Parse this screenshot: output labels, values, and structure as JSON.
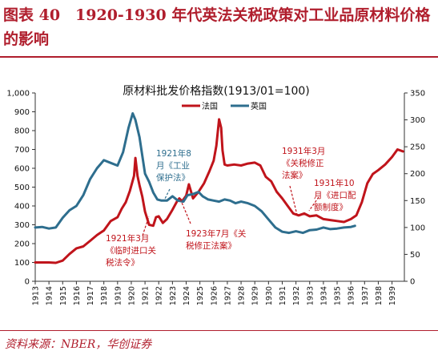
{
  "figure": {
    "title": "图表 40　1920-1930 年代英法关税政策对工业品原材料价格的影响",
    "source": "资料来源：NBER，华创证券"
  },
  "colors": {
    "france": "#c0141b",
    "uk": "#2e6e8e",
    "accent": "#b01e2d"
  },
  "chart_data": {
    "type": "line",
    "title": "原材料批发价格指数(1913/01=100)",
    "x_ticks": [
      "1913",
      "1914",
      "1915",
      "1916",
      "1917",
      "1918",
      "1919",
      "1920",
      "1921",
      "1922",
      "1923",
      "1924",
      "1925",
      "1926",
      "1927",
      "1928",
      "1929",
      "1930",
      "1931",
      "1932",
      "1933",
      "1934",
      "1935",
      "1936",
      "1937",
      "1938",
      "1939"
    ],
    "xlim": [
      1913.0,
      1939.9
    ],
    "y_left": {
      "lim": [
        0,
        1000
      ],
      "ticks": [
        "0",
        "100",
        "200",
        "300",
        "400",
        "500",
        "600",
        "700",
        "800",
        "900",
        "1,000"
      ]
    },
    "y_right": {
      "lim": [
        0,
        350
      ],
      "ticks": [
        "0",
        "50",
        "100",
        "150",
        "200",
        "250",
        "300",
        "350"
      ]
    },
    "legend": {
      "position": "top-center"
    },
    "series": [
      {
        "name": "法国",
        "axis": "left",
        "color": "#c0141b",
        "points": [
          [
            1913.0,
            100
          ],
          [
            1913.5,
            100
          ],
          [
            1914.0,
            100
          ],
          [
            1914.5,
            98
          ],
          [
            1915.0,
            110
          ],
          [
            1915.5,
            145
          ],
          [
            1916.0,
            175
          ],
          [
            1916.5,
            185
          ],
          [
            1917.0,
            215
          ],
          [
            1917.5,
            245
          ],
          [
            1918.0,
            270
          ],
          [
            1918.5,
            320
          ],
          [
            1919.0,
            340
          ],
          [
            1919.3,
            385
          ],
          [
            1919.6,
            420
          ],
          [
            1919.9,
            480
          ],
          [
            1920.2,
            560
          ],
          [
            1920.3,
            655
          ],
          [
            1920.45,
            560
          ],
          [
            1920.6,
            510
          ],
          [
            1920.8,
            450
          ],
          [
            1921.0,
            370
          ],
          [
            1921.3,
            300
          ],
          [
            1921.6,
            295
          ],
          [
            1921.8,
            340
          ],
          [
            1922.0,
            345
          ],
          [
            1922.3,
            310
          ],
          [
            1922.6,
            330
          ],
          [
            1923.0,
            380
          ],
          [
            1923.3,
            420
          ],
          [
            1923.5,
            440
          ],
          [
            1923.7,
            425
          ],
          [
            1924.0,
            455
          ],
          [
            1924.2,
            515
          ],
          [
            1924.5,
            440
          ],
          [
            1924.9,
            475
          ],
          [
            1925.3,
            520
          ],
          [
            1925.7,
            585
          ],
          [
            1926.0,
            640
          ],
          [
            1926.2,
            720
          ],
          [
            1926.4,
            860
          ],
          [
            1926.55,
            815
          ],
          [
            1926.65,
            695
          ],
          [
            1926.8,
            620
          ],
          [
            1927.0,
            615
          ],
          [
            1927.5,
            620
          ],
          [
            1928.0,
            615
          ],
          [
            1928.5,
            625
          ],
          [
            1929.0,
            630
          ],
          [
            1929.4,
            615
          ],
          [
            1929.8,
            555
          ],
          [
            1930.2,
            530
          ],
          [
            1930.6,
            475
          ],
          [
            1931.0,
            440
          ],
          [
            1931.4,
            400
          ],
          [
            1931.8,
            360
          ],
          [
            1932.2,
            350
          ],
          [
            1932.6,
            360
          ],
          [
            1933.0,
            345
          ],
          [
            1933.5,
            350
          ],
          [
            1934.0,
            330
          ],
          [
            1934.5,
            325
          ],
          [
            1935.0,
            320
          ],
          [
            1935.5,
            315
          ],
          [
            1936.0,
            330
          ],
          [
            1936.4,
            350
          ],
          [
            1936.8,
            420
          ],
          [
            1937.2,
            520
          ],
          [
            1937.6,
            570
          ],
          [
            1938.0,
            590
          ],
          [
            1938.5,
            620
          ],
          [
            1939.0,
            660
          ],
          [
            1939.4,
            700
          ],
          [
            1939.8,
            690
          ]
        ]
      },
      {
        "name": "英国",
        "axis": "right",
        "color": "#2e6e8e",
        "points": [
          [
            1913.0,
            100
          ],
          [
            1913.5,
            101
          ],
          [
            1914.0,
            98
          ],
          [
            1914.5,
            100
          ],
          [
            1915.0,
            118
          ],
          [
            1915.5,
            132
          ],
          [
            1916.0,
            140
          ],
          [
            1916.5,
            160
          ],
          [
            1917.0,
            190
          ],
          [
            1917.5,
            210
          ],
          [
            1918.0,
            225
          ],
          [
            1918.5,
            220
          ],
          [
            1919.0,
            215
          ],
          [
            1919.4,
            240
          ],
          [
            1919.8,
            285
          ],
          [
            1920.1,
            312
          ],
          [
            1920.3,
            300
          ],
          [
            1920.6,
            268
          ],
          [
            1921.0,
            200
          ],
          [
            1921.3,
            185
          ],
          [
            1921.6,
            165
          ],
          [
            1921.9,
            152
          ],
          [
            1922.2,
            150
          ],
          [
            1922.6,
            150
          ],
          [
            1923.0,
            158
          ],
          [
            1923.4,
            150
          ],
          [
            1923.8,
            148
          ],
          [
            1924.1,
            160
          ],
          [
            1924.5,
            162
          ],
          [
            1924.9,
            166
          ],
          [
            1925.2,
            158
          ],
          [
            1925.6,
            152
          ],
          [
            1926.0,
            150
          ],
          [
            1926.4,
            148
          ],
          [
            1926.8,
            152
          ],
          [
            1927.2,
            150
          ],
          [
            1927.6,
            145
          ],
          [
            1928.0,
            148
          ],
          [
            1928.5,
            145
          ],
          [
            1929.0,
            140
          ],
          [
            1929.5,
            130
          ],
          [
            1930.0,
            115
          ],
          [
            1930.5,
            100
          ],
          [
            1931.0,
            92
          ],
          [
            1931.5,
            90
          ],
          [
            1932.0,
            93
          ],
          [
            1932.5,
            90
          ],
          [
            1933.0,
            95
          ],
          [
            1933.5,
            96
          ],
          [
            1934.0,
            100
          ],
          [
            1934.5,
            97
          ],
          [
            1935.0,
            98
          ],
          [
            1935.5,
            100
          ],
          [
            1936.0,
            101
          ],
          [
            1936.3,
            103
          ]
        ]
      }
    ],
    "annotations": [
      {
        "lines": [
          "1921年8",
          "月《工业",
          "保护法》"
        ],
        "color": "#2e6e8e"
      },
      {
        "lines": [
          "1921年3月",
          "《临时进口关",
          "税法令》"
        ],
        "color": "#c0141b"
      },
      {
        "lines": [
          "1923年7月《关",
          "税修正法案》"
        ],
        "color": "#c0141b"
      },
      {
        "lines": [
          "1931年3月",
          "《关税修正",
          "法案》"
        ],
        "color": "#c0141b"
      },
      {
        "lines": [
          "1931年10",
          "月《进口配",
          "额制度》"
        ],
        "color": "#c0141b"
      }
    ]
  }
}
